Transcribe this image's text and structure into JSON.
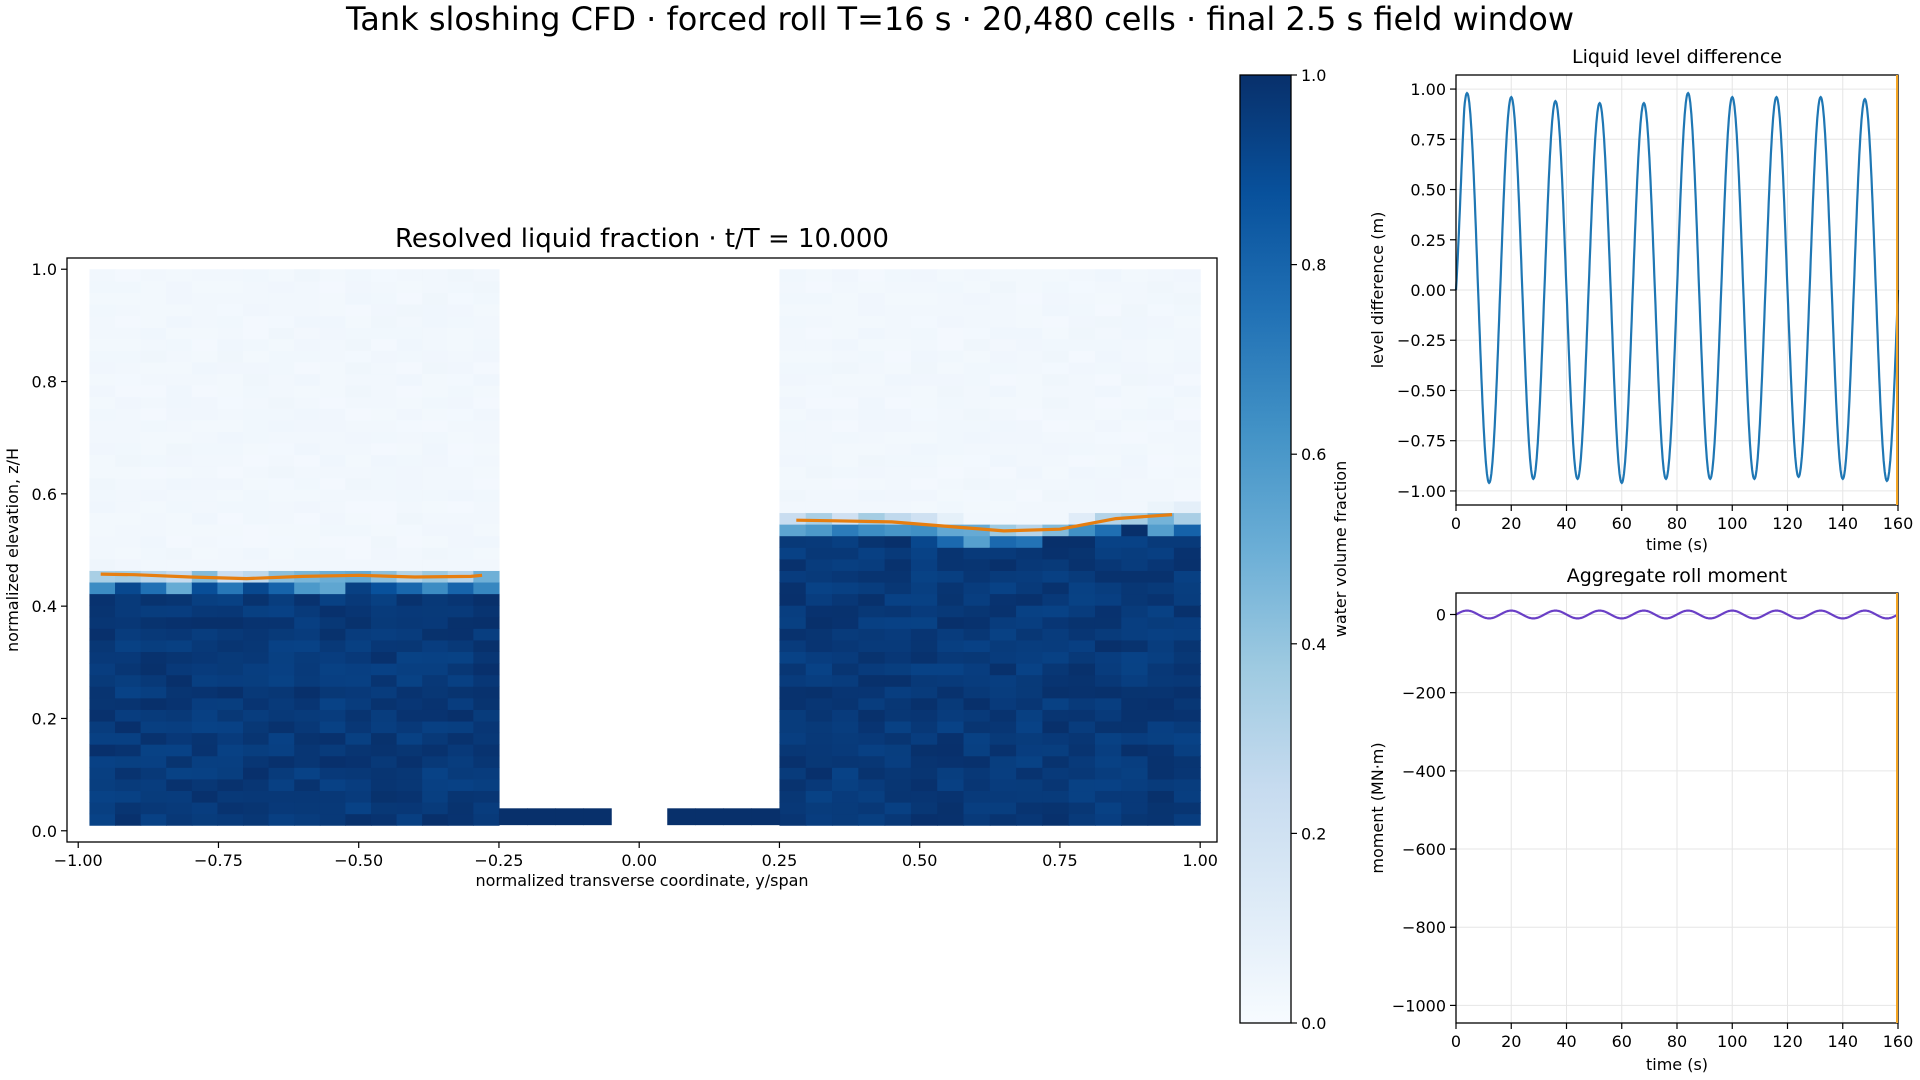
{
  "figure": {
    "suptitle": "Tank sloshing CFD · forced roll T=16 s · 20,480 cells · final 2.5 s field window"
  },
  "chart_data": [
    {
      "id": "field",
      "type": "heatmap",
      "title": "Resolved liquid fraction · t/T = 10.000",
      "xlabel": "normalized transverse coordinate, y/span",
      "ylabel": "normalized elevation, z/H",
      "xlim": [
        -1.02,
        1.03
      ],
      "ylim": [
        -0.02,
        1.02
      ],
      "xticks": [
        "−1.00",
        "−0.75",
        "−0.50",
        "−0.25",
        "0.00",
        "0.25",
        "0.50",
        "0.75",
        "1.00"
      ],
      "xtick_values": [
        -1.0,
        -0.75,
        -0.5,
        -0.25,
        0.0,
        0.25,
        0.5,
        0.75,
        1.0
      ],
      "yticks": [
        "0.0",
        "0.2",
        "0.4",
        "0.6",
        "0.8",
        "1.0"
      ],
      "ytick_values": [
        0.0,
        0.2,
        0.4,
        0.6,
        0.8,
        1.0
      ],
      "colormap": "Blues",
      "colors": {
        "dark": "#08306b",
        "mid": "#2171b5",
        "light": "#f7fbff",
        "surface_line": "#e67e10"
      },
      "regions": [
        {
          "name": "left-tank",
          "y": [
            -0.98,
            -0.25
          ],
          "z": [
            0.01,
            1.0
          ],
          "fill_level": 0.46
        },
        {
          "name": "right-tank",
          "y": [
            0.25,
            1.0
          ],
          "z": [
            0.01,
            1.0
          ],
          "fill_level": 0.56
        },
        {
          "name": "connecting-duct",
          "y": [
            -0.25,
            0.25
          ],
          "z": [
            0.01,
            0.04
          ],
          "fill_level": 0.04
        }
      ],
      "surface_left": {
        "y": [
          -0.96,
          -0.9,
          -0.8,
          -0.7,
          -0.6,
          -0.5,
          -0.4,
          -0.3,
          -0.28
        ],
        "z": [
          0.457,
          0.456,
          0.452,
          0.449,
          0.453,
          0.455,
          0.452,
          0.453,
          0.455
        ]
      },
      "surface_right": {
        "y": [
          0.28,
          0.35,
          0.45,
          0.55,
          0.65,
          0.75,
          0.85,
          0.95
        ],
        "z": [
          0.553,
          0.552,
          0.55,
          0.542,
          0.534,
          0.537,
          0.556,
          0.563
        ]
      }
    },
    {
      "id": "colorbar",
      "type": "colorbar",
      "label": "water volume fraction",
      "range": [
        0.0,
        1.0
      ],
      "ticks": [
        "0.0",
        "0.2",
        "0.4",
        "0.6",
        "0.8",
        "1.0"
      ],
      "tick_values": [
        0.0,
        0.2,
        0.4,
        0.6,
        0.8,
        1.0
      ]
    },
    {
      "id": "level",
      "type": "line",
      "title": "Liquid level difference",
      "xlabel": "time (s)",
      "ylabel": "level difference (m)",
      "xlim": [
        0,
        160
      ],
      "ylim": [
        -1.07,
        1.07
      ],
      "xticks": [
        "0",
        "20",
        "40",
        "60",
        "80",
        "100",
        "120",
        "140",
        "160"
      ],
      "xtick_values": [
        0,
        20,
        40,
        60,
        80,
        100,
        120,
        140,
        160
      ],
      "yticks": [
        "−1.00",
        "−0.75",
        "−0.50",
        "−0.25",
        "0.00",
        "0.25",
        "0.50",
        "0.75",
        "1.00"
      ],
      "ytick_values": [
        -1.0,
        -0.75,
        -0.5,
        -0.25,
        0.0,
        0.25,
        0.5,
        0.75,
        1.0
      ],
      "grid": true,
      "color": "#1f77b4",
      "period": 16,
      "peaks": [
        0.98,
        0.96,
        0.94,
        0.93,
        0.93,
        0.98,
        0.96,
        0.96,
        0.96,
        0.95
      ],
      "troughs": [
        -0.96,
        -0.94,
        -0.94,
        -0.96,
        -0.94,
        -0.94,
        -0.94,
        -0.93,
        -0.94,
        -0.95
      ]
    },
    {
      "id": "moment",
      "type": "line",
      "title": "Aggregate roll moment",
      "xlabel": "time (s)",
      "ylabel": "moment (MN·m)",
      "xlim": [
        0,
        160
      ],
      "ylim": [
        -1045,
        55
      ],
      "xticks": [
        "0",
        "20",
        "40",
        "60",
        "80",
        "100",
        "120",
        "140",
        "160"
      ],
      "xtick_values": [
        0,
        20,
        40,
        60,
        80,
        100,
        120,
        140,
        160
      ],
      "yticks": [
        "−1000",
        "−800",
        "−600",
        "−400",
        "−200",
        "0"
      ],
      "ytick_values": [
        -1000,
        -800,
        -600,
        -400,
        -200,
        0
      ],
      "grid": true,
      "color": "#6a3fc6",
      "period": 16,
      "amplitude": 10
    }
  ]
}
